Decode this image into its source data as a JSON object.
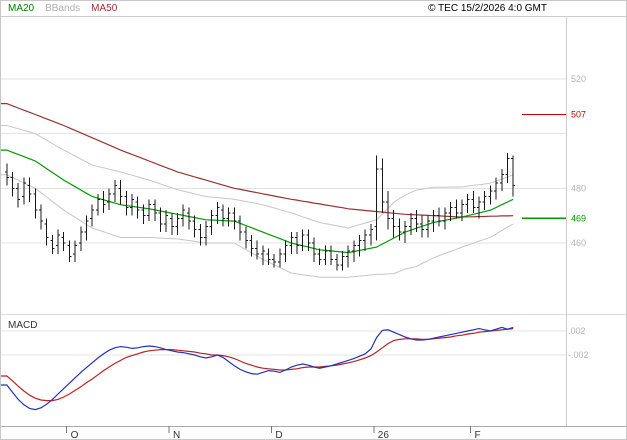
{
  "header": {
    "legend": [
      {
        "label": "MA20",
        "color": "#008000"
      },
      {
        "label": "BBands",
        "color": "#b0b0b0"
      },
      {
        "label": "MA50",
        "color": "#993333"
      }
    ],
    "copyright": "© TEC 15/2/2026 4:0 GMT"
  },
  "chart_data": {
    "type": "ohlc+line+macd",
    "x_axis": {
      "labels": [
        {
          "label": "O",
          "bar": 11
        },
        {
          "label": "N",
          "bar": 29
        },
        {
          "label": "D",
          "bar": 47
        },
        {
          "label": "26",
          "bar": 65
        },
        {
          "label": "F",
          "bar": 82
        }
      ]
    },
    "price_panel": {
      "ylim": [
        435,
        543
      ],
      "y_ticks": [
        {
          "value": 520,
          "label": "520"
        },
        {
          "value": 500,
          "label": ""
        },
        {
          "value": 480,
          "label": "480"
        },
        {
          "value": 460,
          "label": "460"
        }
      ],
      "levels": [
        {
          "value": 507,
          "label": "507",
          "color": "#cc0000"
        },
        {
          "value": 469,
          "label": "469",
          "color": "#009900"
        }
      ],
      "series_colors": {
        "ma20": "#009900",
        "ma50": "#993333",
        "bbands": "#c6c6c6",
        "bars": "#1a1a1a"
      },
      "bars": [
        [
          486,
          489,
          481,
          484
        ],
        [
          484,
          486,
          477,
          480
        ],
        [
          480,
          482,
          473,
          476
        ],
        [
          477,
          484,
          474,
          482
        ],
        [
          481,
          484,
          475,
          478
        ],
        [
          478,
          480,
          469,
          472
        ],
        [
          472,
          474,
          465,
          468
        ],
        [
          467,
          469,
          459,
          462
        ],
        [
          461,
          463,
          456,
          458
        ],
        [
          459,
          465,
          456,
          463
        ],
        [
          462,
          464,
          457,
          460
        ],
        [
          459,
          461,
          453,
          455
        ],
        [
          456,
          461,
          453,
          459
        ],
        [
          460,
          466,
          457,
          464
        ],
        [
          464,
          470,
          461,
          468
        ],
        [
          469,
          474,
          466,
          472
        ],
        [
          472,
          478,
          470,
          476
        ],
        [
          476,
          479,
          471,
          474
        ],
        [
          475,
          480,
          472,
          478
        ],
        [
          478,
          483,
          475,
          481
        ],
        [
          480,
          483,
          474,
          477
        ],
        [
          477,
          479,
          470,
          473
        ],
        [
          473,
          478,
          470,
          476
        ],
        [
          475,
          477,
          469,
          472
        ],
        [
          472,
          474,
          467,
          470
        ],
        [
          470,
          476,
          468,
          474
        ],
        [
          474,
          476,
          468,
          471
        ],
        [
          471,
          473,
          464,
          467
        ],
        [
          467,
          472,
          464,
          470
        ],
        [
          469,
          471,
          463,
          466
        ],
        [
          466,
          471,
          463,
          469
        ],
        [
          469,
          474,
          466,
          472
        ],
        [
          471,
          473,
          465,
          468
        ],
        [
          468,
          470,
          462,
          465
        ],
        [
          465,
          467,
          459,
          462
        ],
        [
          462,
          468,
          459,
          466
        ],
        [
          466,
          472,
          463,
          470
        ],
        [
          470,
          475,
          467,
          473
        ],
        [
          472,
          474,
          466,
          469
        ],
        [
          469,
          473,
          466,
          471
        ],
        [
          471,
          473,
          465,
          468
        ],
        [
          468,
          470,
          461,
          464
        ],
        [
          464,
          466,
          458,
          461
        ],
        [
          461,
          463,
          455,
          458
        ],
        [
          458,
          461,
          454,
          456
        ],
        [
          456,
          459,
          452,
          457
        ],
        [
          456,
          458,
          452,
          454
        ],
        [
          454,
          456,
          451,
          453
        ],
        [
          453,
          458,
          451,
          456
        ],
        [
          456,
          461,
          453,
          459
        ],
        [
          459,
          464,
          456,
          462
        ],
        [
          462,
          464,
          456,
          459
        ],
        [
          459,
          465,
          457,
          463
        ],
        [
          463,
          465,
          457,
          460
        ],
        [
          460,
          462,
          453,
          456
        ],
        [
          456,
          458,
          452,
          454
        ],
        [
          454,
          459,
          452,
          457
        ],
        [
          457,
          459,
          452,
          454
        ],
        [
          454,
          456,
          450,
          452
        ],
        [
          452,
          457,
          450,
          455
        ],
        [
          455,
          459,
          451,
          457
        ],
        [
          457,
          461,
          453,
          459
        ],
        [
          459,
          463,
          455,
          461
        ],
        [
          461,
          465,
          457,
          463
        ],
        [
          463,
          467,
          459,
          465
        ],
        [
          466,
          492,
          461,
          487
        ],
        [
          487,
          491,
          471,
          475
        ],
        [
          475,
          479,
          465,
          469
        ],
        [
          469,
          472,
          462,
          466
        ],
        [
          466,
          469,
          461,
          464
        ],
        [
          464,
          468,
          460,
          466
        ],
        [
          466,
          471,
          463,
          469
        ],
        [
          469,
          472,
          464,
          467
        ],
        [
          467,
          470,
          462,
          465
        ],
        [
          465,
          470,
          462,
          468
        ],
        [
          468,
          472,
          464,
          470
        ],
        [
          470,
          473,
          466,
          468
        ],
        [
          468,
          473,
          465,
          471
        ],
        [
          471,
          475,
          468,
          473
        ],
        [
          473,
          476,
          469,
          471
        ],
        [
          471,
          476,
          468,
          474
        ],
        [
          474,
          478,
          471,
          476
        ],
        [
          476,
          479,
          471,
          473
        ],
        [
          473,
          477,
          469,
          475
        ],
        [
          475,
          479,
          472,
          477
        ],
        [
          477,
          481,
          474,
          479
        ],
        [
          479,
          484,
          476,
          482
        ],
        [
          482,
          487,
          479,
          485
        ],
        [
          485,
          493,
          482,
          491
        ],
        [
          491,
          492,
          477,
          481
        ]
      ],
      "ma50": [
        511,
        510.2,
        509.4,
        508.6,
        507.8,
        507,
        506.2,
        505.4,
        504.6,
        503.8,
        503,
        502.1,
        501.2,
        500.3,
        499.4,
        498.5,
        497.6,
        496.7,
        495.8,
        494.9,
        494,
        493.2,
        492.4,
        491.6,
        490.8,
        490,
        489.2,
        488.4,
        487.6,
        486.8,
        486,
        485.4,
        484.8,
        484.2,
        483.6,
        483,
        482.4,
        481.8,
        481.2,
        480.6,
        480,
        479.6,
        479.2,
        478.8,
        478.4,
        478,
        477.6,
        477.2,
        476.8,
        476.4,
        476,
        475.7,
        475.3,
        475,
        474.6,
        474.3,
        473.9,
        473.6,
        473.2,
        472.9,
        472.5,
        472.3,
        472.1,
        471.9,
        471.7,
        471.5,
        471.3,
        471.1,
        470.9,
        470.7,
        470.5,
        470.4,
        470.3,
        470.2,
        470.1,
        470,
        469.9,
        469.8,
        469.7,
        469.6,
        469.5,
        469.6,
        469.6,
        469.7,
        469.7,
        469.8,
        469.8,
        469.9,
        469.9,
        470
      ],
      "ma20": [
        494,
        493.2,
        492.4,
        491.6,
        490.8,
        490,
        488.6,
        487.2,
        485.8,
        484.4,
        483,
        481.8,
        480.6,
        479.4,
        478.2,
        477,
        476.4,
        475.8,
        475.2,
        474.6,
        474,
        473.7,
        473.4,
        473.1,
        472.8,
        472.5,
        472.1,
        471.7,
        471.3,
        470.9,
        470.5,
        470.1,
        469.7,
        469.3,
        468.9,
        468.5,
        468.4,
        468.3,
        468.2,
        468.1,
        468,
        467.2,
        466.4,
        465.6,
        464.8,
        464,
        463.2,
        462.4,
        461.6,
        460.8,
        460,
        459.5,
        459,
        458.5,
        458,
        457.5,
        457.3,
        457.1,
        456.9,
        456.7,
        456.5,
        456.9,
        457.3,
        457.7,
        458.1,
        458.5,
        459.6,
        460.7,
        461.8,
        462.9,
        464,
        464.7,
        465.4,
        466.1,
        466.8,
        467.5,
        467.9,
        468.3,
        468.7,
        469.1,
        469.5,
        470,
        470.5,
        471,
        471.5,
        472,
        473,
        474,
        475,
        476
      ],
      "bb_upper": [
        503,
        502.4,
        501.8,
        501.2,
        500.6,
        500,
        498.8,
        497.6,
        496.4,
        495.2,
        494,
        492.9,
        491.8,
        490.7,
        489.6,
        488.5,
        488,
        487.5,
        487,
        486.5,
        486,
        485.4,
        484.8,
        484.2,
        483.6,
        483,
        482.3,
        481.6,
        480.9,
        480.2,
        479.5,
        479,
        478.5,
        478,
        477.5,
        477,
        476.8,
        476.6,
        476.4,
        476.2,
        476,
        475.6,
        475.2,
        474.8,
        474.4,
        474,
        473.4,
        472.8,
        472.2,
        471.6,
        471,
        470.3,
        469.6,
        468.9,
        468.2,
        467.5,
        467.1,
        466.7,
        466.3,
        465.9,
        465.5,
        466.1,
        466.7,
        467.3,
        467.9,
        468.5,
        470.6,
        472.7,
        474.8,
        476.2,
        477.5,
        478.5,
        479.4,
        479.7,
        480.1,
        480.4,
        480.4,
        480.4,
        480.5,
        480.5,
        480.5,
        480.8,
        481.1,
        481.3,
        481.6,
        481.9,
        482.7,
        483.4,
        484.2,
        485
      ],
      "bb_lower": [
        485,
        484,
        483,
        482,
        481,
        480,
        478.4,
        476.8,
        475.2,
        473.6,
        472,
        470.7,
        469.4,
        468.1,
        466.8,
        465.5,
        464.8,
        464.1,
        463.4,
        462.7,
        462,
        462,
        462,
        462,
        462,
        462,
        461.9,
        461.8,
        461.7,
        461.6,
        461.5,
        461.2,
        460.9,
        460.6,
        460.3,
        460,
        460,
        460,
        460,
        460,
        460,
        458.8,
        457.6,
        456.4,
        455.2,
        454,
        453,
        452,
        451,
        450,
        449,
        448.7,
        448.4,
        448.1,
        447.8,
        447.5,
        447.5,
        447.5,
        447.5,
        447.5,
        447.5,
        447.7,
        447.9,
        448.1,
        448.3,
        448.5,
        448.6,
        448.7,
        448.8,
        449.6,
        450.5,
        450.9,
        451.4,
        452.5,
        453.5,
        454.6,
        455.4,
        456.2,
        456.9,
        457.7,
        458.5,
        459.2,
        459.9,
        460.7,
        461.4,
        462.1,
        463.3,
        464.6,
        465.8,
        467
      ]
    },
    "macd_panel": {
      "label": "MACD",
      "scale": 0.001,
      "y_ticks": [
        {
          "value": 0.002,
          "label": ".002"
        },
        {
          "value": -0.002,
          "label": "-.002"
        }
      ],
      "colors": {
        "macd": "#2233bb",
        "signal": "#bb2222"
      },
      "macd": [
        -7,
        -8.2,
        -9.4,
        -10.3,
        -10.9,
        -11.1,
        -10.8,
        -10.2,
        -9.4,
        -8.5,
        -7.6,
        -6.7,
        -5.8,
        -4.9,
        -4.1,
        -3.3,
        -2.5,
        -1.8,
        -1.2,
        -0.8,
        -0.6,
        -0.7,
        -0.9,
        -0.8,
        -0.6,
        -0.5,
        -0.6,
        -0.8,
        -1.1,
        -1.3,
        -1.5,
        -1.6,
        -1.8,
        -2,
        -2.3,
        -2.5,
        -2.3,
        -2,
        -2.4,
        -3.1,
        -3.8,
        -4.4,
        -4.8,
        -5.1,
        -5.2,
        -4.9,
        -4.6,
        -4.7,
        -4.9,
        -4.5,
        -4,
        -3.7,
        -3.5,
        -3.7,
        -4,
        -4.2,
        -4,
        -3.8,
        -3.5,
        -3.2,
        -2.9,
        -2.6,
        -2.2,
        -1.8,
        -1,
        0.9,
        2.1,
        2.2,
        1.8,
        1.4,
        1,
        0.7,
        0.5,
        0.5,
        0.6,
        0.8,
        1,
        1.2,
        1.4,
        1.6,
        1.8,
        2,
        2.2,
        2.4,
        2.2,
        2,
        2.3,
        2.6,
        2.3,
        2.6
      ],
      "signal": [
        -5.5,
        -6.3,
        -7.2,
        -8,
        -8.7,
        -9.2,
        -9.5,
        -9.6,
        -9.6,
        -9.4,
        -9,
        -8.5,
        -7.9,
        -7.3,
        -6.6,
        -6,
        -5.3,
        -4.6,
        -4,
        -3.4,
        -2.9,
        -2.4,
        -2.1,
        -1.8,
        -1.5,
        -1.3,
        -1.2,
        -1.1,
        -1.1,
        -1.1,
        -1.2,
        -1.3,
        -1.4,
        -1.5,
        -1.7,
        -1.8,
        -2,
        -2,
        -2.1,
        -2.3,
        -2.6,
        -3,
        -3.4,
        -3.7,
        -4,
        -4.2,
        -4.3,
        -4.4,
        -4.5,
        -4.5,
        -4.4,
        -4.3,
        -4.1,
        -4,
        -4,
        -4,
        -3.9,
        -3.8,
        -3.7,
        -3.5,
        -3.3,
        -3.1,
        -2.8,
        -2.5,
        -2.1,
        -1.5,
        -0.8,
        -0.1,
        0.4,
        0.6,
        0.7,
        0.7,
        0.7,
        0.6,
        0.6,
        0.7,
        0.8,
        0.9,
        1,
        1.2,
        1.3,
        1.5,
        1.6,
        1.8,
        1.9,
        2,
        2.1,
        2.2,
        2.3,
        2.4
      ]
    }
  }
}
